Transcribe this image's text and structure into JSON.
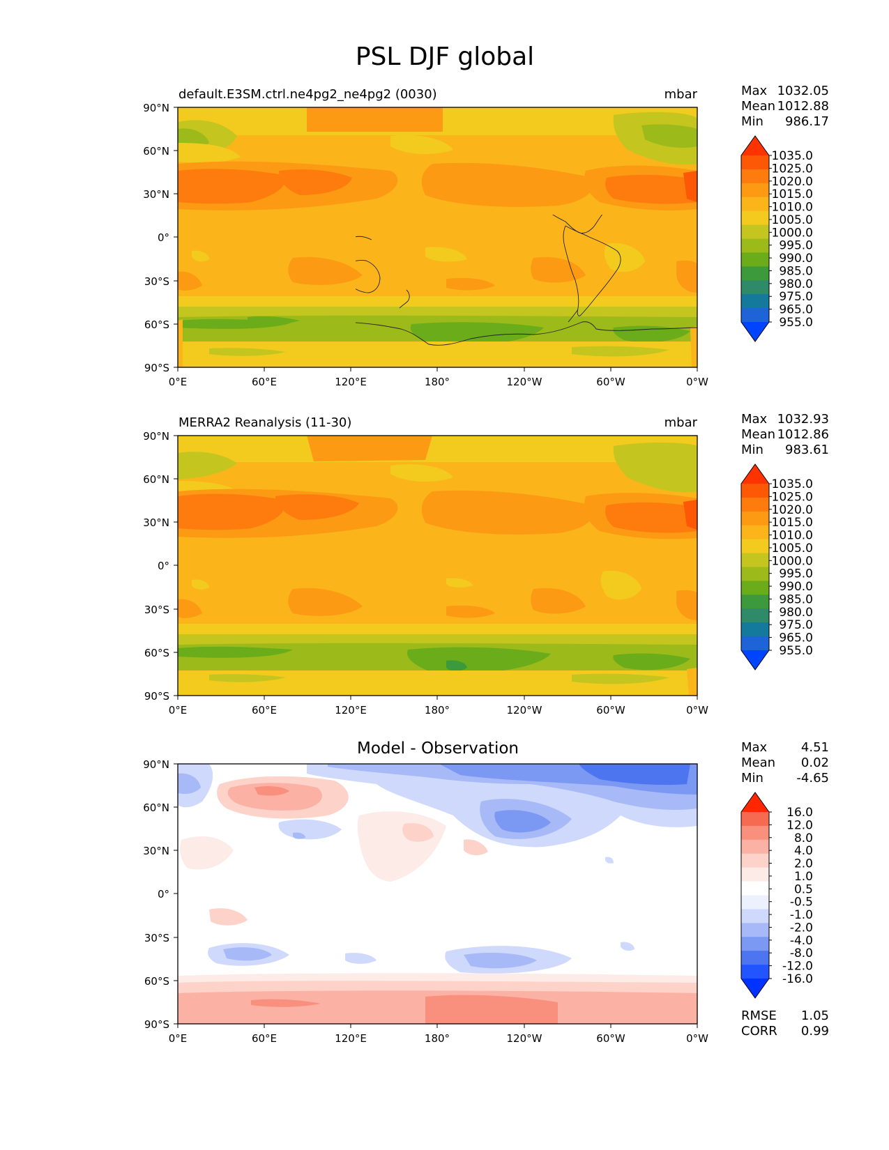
{
  "figure": {
    "title": "PSL DJF global"
  },
  "axes_labels": {
    "lat": [
      "90°N",
      "60°N",
      "30°N",
      "0°",
      "30°S",
      "60°S",
      "90°S"
    ],
    "lon": [
      "0°E",
      "60°E",
      "120°E",
      "180°",
      "120°W",
      "60°W",
      "0°W"
    ]
  },
  "panels": [
    {
      "title_left": "default.E3SM.ctrl.ne4pg2_ne4pg2 (0030)",
      "units": "mbar",
      "stats": {
        "max_label": "Max",
        "max": "1032.05",
        "mean_label": "Mean",
        "mean": "1012.88",
        "min_label": "Min",
        "min": "986.17"
      },
      "colorbar": [
        "1035.0",
        "1025.0",
        "1020.0",
        "1015.0",
        "1010.0",
        "1005.0",
        "1000.0",
        "995.0",
        "990.0",
        "985.0",
        "980.0",
        "975.0",
        "965.0",
        "955.0"
      ]
    },
    {
      "title_left": "MERRA2 Reanalysis (11-30)",
      "units": "mbar",
      "stats": {
        "max_label": "Max",
        "max": "1032.93",
        "mean_label": "Mean",
        "mean": "1012.86",
        "min_label": "Min",
        "min": "983.61"
      },
      "colorbar": [
        "1035.0",
        "1025.0",
        "1020.0",
        "1015.0",
        "1010.0",
        "1005.0",
        "1000.0",
        "995.0",
        "990.0",
        "985.0",
        "980.0",
        "975.0",
        "965.0",
        "955.0"
      ]
    },
    {
      "title_center": "Model - Observation",
      "stats": {
        "max_label": "Max",
        "max": "4.51",
        "mean_label": "Mean",
        "mean": "0.02",
        "min_label": "Min",
        "min": "-4.65"
      },
      "colorbar": [
        "16.0",
        "12.0",
        "8.0",
        "4.0",
        "2.0",
        "1.0",
        "0.5",
        "-0.5",
        "-1.0",
        "-2.0",
        "-4.0",
        "-8.0",
        "-12.0",
        "-16.0"
      ],
      "metrics": {
        "rmse_label": "RMSE",
        "rmse": "1.05",
        "corr_label": "CORR",
        "corr": "0.99"
      }
    }
  ],
  "colors": {
    "field_cmap": [
      "#0044ff",
      "#1f63d8",
      "#137a9b",
      "#2f8a6a",
      "#3c9a3c",
      "#6aac1a",
      "#9cbb1a",
      "#c5c51f",
      "#f2cb1e",
      "#fbb51a",
      "#fc9a14",
      "#fd7c0d",
      "#fc5806",
      "#ff3300"
    ],
    "diff_cmap": [
      "#0033ff",
      "#2255ff",
      "#4d75f0",
      "#7b98f2",
      "#a7b9f7",
      "#cfd9fb",
      "#edf1fd",
      "#ffffff",
      "#fdebe7",
      "#fcd2c9",
      "#fbb2a4",
      "#f9907e",
      "#f76a52",
      "#ff2600"
    ],
    "coast": "#222222"
  }
}
